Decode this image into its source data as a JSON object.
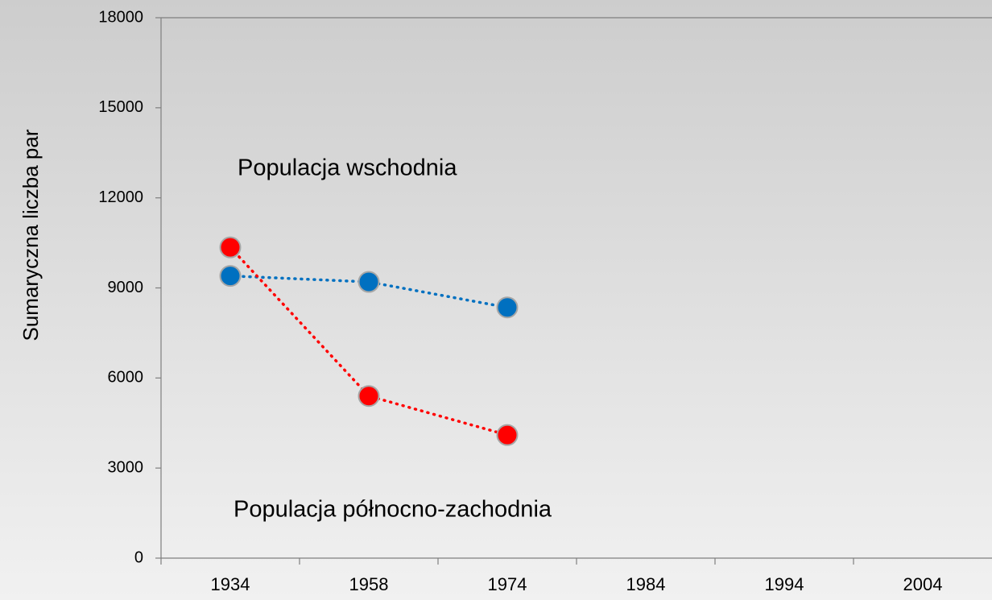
{
  "chart_data": {
    "type": "line",
    "y_label": "Sumaryczna liczba par",
    "categories": [
      "1934",
      "1958",
      "1974",
      "1984",
      "1994",
      "2004"
    ],
    "series": [
      {
        "name": "Populacja wschodnia",
        "color": "#0070c0",
        "values": [
          9400,
          9200,
          8350,
          null,
          null,
          null
        ]
      },
      {
        "name": "Populacja północno-zachodnia",
        "color": "#ff0000",
        "values": [
          10350,
          5400,
          4100,
          null,
          null,
          null
        ]
      }
    ],
    "ylim": [
      0,
      18000
    ],
    "yticks": [
      0,
      3000,
      6000,
      9000,
      12000,
      15000,
      18000
    ],
    "grid": false
  }
}
